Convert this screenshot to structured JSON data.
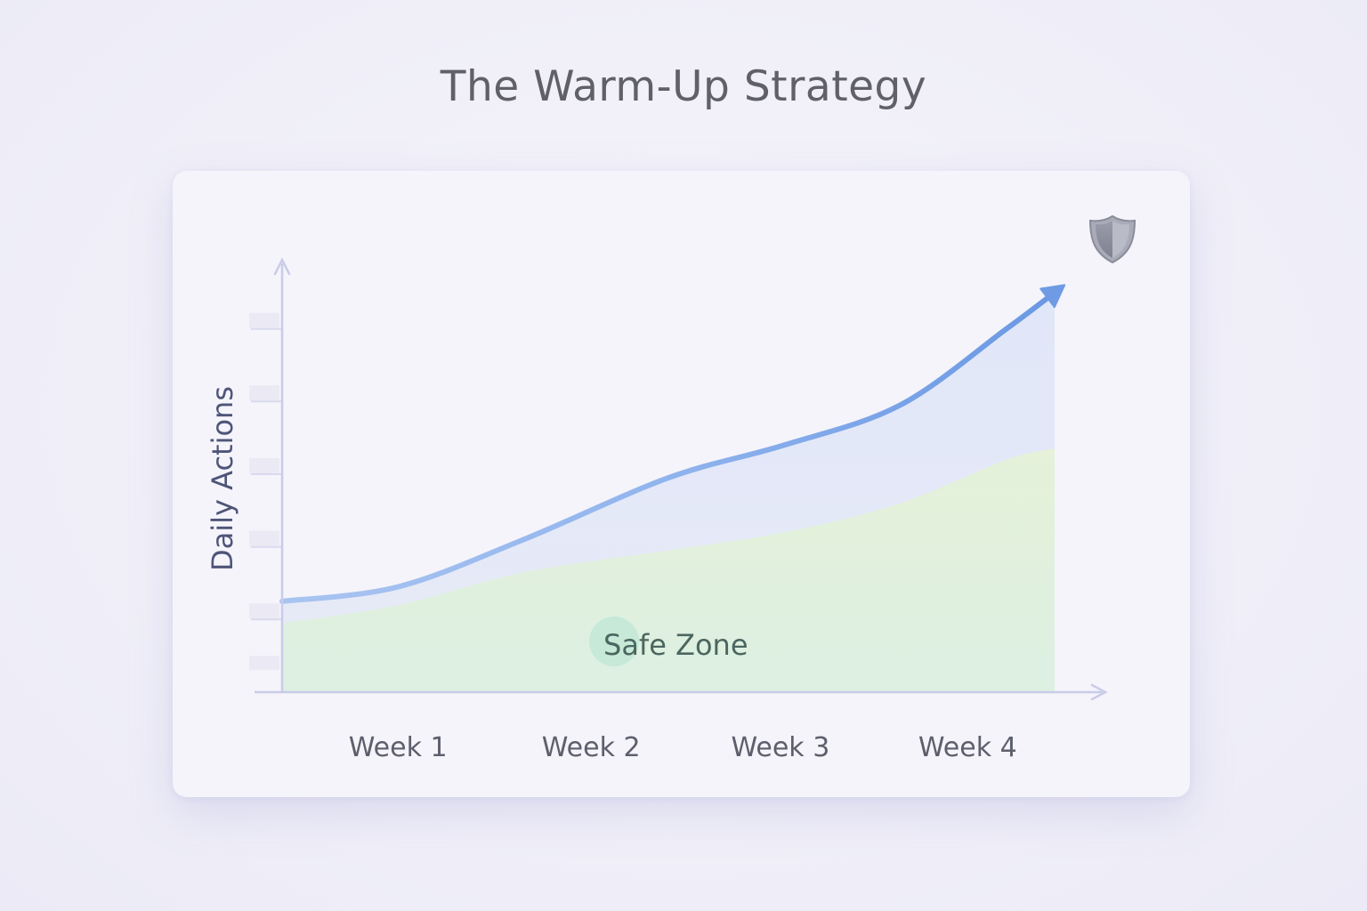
{
  "title": "The Warm-Up Strategy",
  "chart_data": {
    "type": "area",
    "title": "The Warm-Up Strategy",
    "xlabel": "",
    "ylabel": "Daily Actions",
    "categories": [
      "Week 1",
      "Week 2",
      "Week 3",
      "Week 4"
    ],
    "x": [
      0,
      0.6,
      1.25,
      2.0,
      2.6,
      3.2,
      3.75,
      4.0
    ],
    "series": [
      {
        "type": "line",
        "values": [
          12.5,
          14.5,
          21,
          29.5,
          34,
          39.5,
          50,
          55
        ],
        "color": "#6e9be3"
      },
      {
        "type": "area",
        "values": [
          9.5,
          12,
          16.5,
          19.5,
          22,
          26,
          32,
          33.5
        ],
        "color": "#dff0dc"
      }
    ],
    "annotations": [
      {
        "text": "Safe Zone",
        "region": "lower green area"
      }
    ],
    "xlim": [
      0,
      4
    ],
    "ylim": [
      0,
      60
    ],
    "grid": false,
    "icons": [
      "shield-icon"
    ]
  }
}
